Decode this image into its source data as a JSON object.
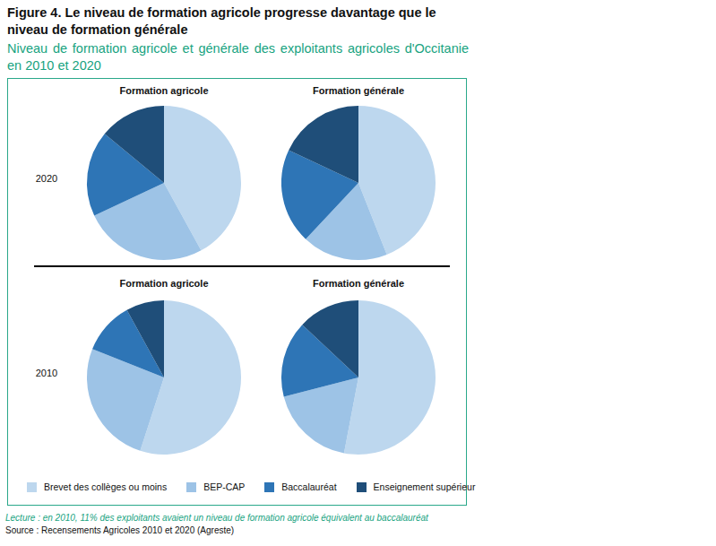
{
  "title": "Figure 4. Le niveau de formation agricole progresse davantage que le niveau de formation générale",
  "subtitle": "Niveau de formation agricole et générale des exploitants agricoles d'Occitanie en 2010 et 2020",
  "row_labels": [
    "2020",
    "2010"
  ],
  "note": "Lecture : en 2010, 11% des exploitants avaient un niveau de formation agricole équivalent au baccalauréat",
  "source": "Source :  Recensements Agricoles 2010 et 2020 (Agreste)",
  "chart_data": [
    {
      "type": "pie",
      "title": "Formation agricole",
      "categories": [
        "Brevet des collèges ou moins",
        "BEP-CAP",
        "Baccalauréat",
        "Enseignement supérieur"
      ],
      "values": [
        42,
        26,
        18,
        14
      ],
      "colors": [
        "#bdd7ee",
        "#9dc3e6",
        "#2e75b6",
        "#1f4e79"
      ]
    },
    {
      "type": "pie",
      "title": "Formation générale",
      "categories": [
        "Brevet des collèges ou moins",
        "BEP-CAP",
        "Baccalauréat",
        "Enseignement supérieur"
      ],
      "values": [
        44,
        18,
        20,
        18
      ],
      "colors": [
        "#bdd7ee",
        "#9dc3e6",
        "#2e75b6",
        "#1f4e79"
      ]
    },
    {
      "type": "pie",
      "title": "Formation agricole",
      "categories": [
        "Brevet des collèges ou moins",
        "BEP-CAP",
        "Baccalauréat",
        "Enseignement supérieur"
      ],
      "values": [
        55,
        26,
        11,
        8
      ],
      "colors": [
        "#bdd7ee",
        "#9dc3e6",
        "#2e75b6",
        "#1f4e79"
      ]
    },
    {
      "type": "pie",
      "title": "Formation générale",
      "categories": [
        "Brevet des collèges ou moins",
        "BEP-CAP",
        "Baccalauréat",
        "Enseignement supérieur"
      ],
      "values": [
        53,
        18,
        16,
        13
      ],
      "colors": [
        "#bdd7ee",
        "#9dc3e6",
        "#2e75b6",
        "#1f4e79"
      ]
    }
  ]
}
